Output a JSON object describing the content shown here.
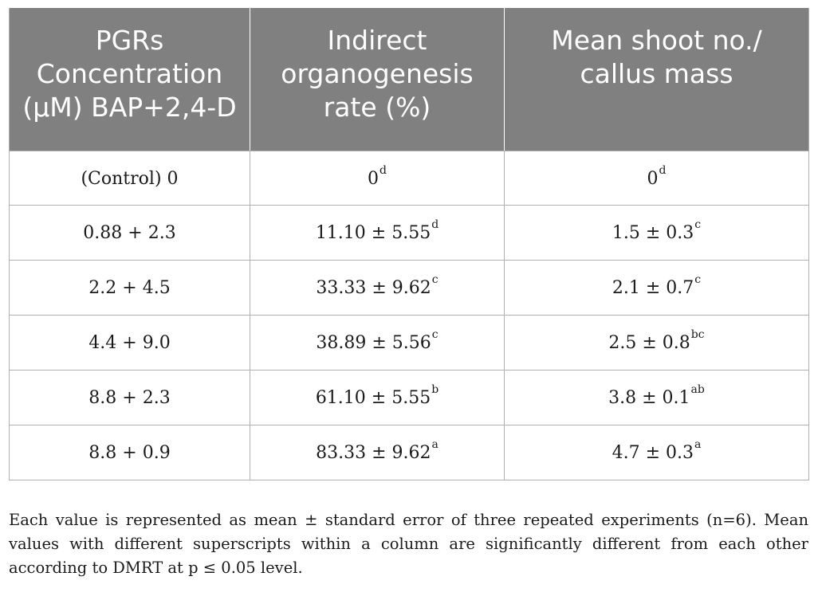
{
  "table": {
    "headers": [
      "PGRs Concentration (µM) BAP+2,4-D",
      "Indirect organogenesis rate (%)",
      "Mean shoot no./ callus mass"
    ],
    "rows": [
      {
        "concentration": "(Control) 0",
        "rate": {
          "value": "0",
          "sup": "d"
        },
        "shoots": {
          "value": "0",
          "sup": "d"
        }
      },
      {
        "concentration": "0.88 + 2.3",
        "rate": {
          "value": "11.10 ± 5.55",
          "sup": "d"
        },
        "shoots": {
          "value": "1.5 ± 0.3",
          "sup": "c"
        }
      },
      {
        "concentration": "2.2 + 4.5",
        "rate": {
          "value": "33.33 ± 9.62",
          "sup": "c"
        },
        "shoots": {
          "value": "2.1 ± 0.7",
          "sup": "c"
        }
      },
      {
        "concentration": "4.4 + 9.0",
        "rate": {
          "value": "38.89 ± 5.56",
          "sup": "c"
        },
        "shoots": {
          "value": "2.5 ± 0.8",
          "sup": "bc"
        }
      },
      {
        "concentration": "8.8 + 2.3",
        "rate": {
          "value": "61.10 ± 5.55",
          "sup": "b"
        },
        "shoots": {
          "value": "3.8 ± 0.1",
          "sup": "ab"
        }
      },
      {
        "concentration": "8.8 + 0.9",
        "rate": {
          "value": "83.33 ± 9.62",
          "sup": "a"
        },
        "shoots": {
          "value": "4.7 ± 0.3",
          "sup": "a"
        }
      }
    ]
  },
  "footnote": "Each value is represented as mean ± standard error of three repeated experiments (n=6). Mean values with different superscripts within a column are significantly different from each other according to DMRT at p ≤ 0.05 level.",
  "colors": {
    "header_background": "#808080",
    "header_text": "#ffffff",
    "grid_lines": "#b0b0b0"
  }
}
